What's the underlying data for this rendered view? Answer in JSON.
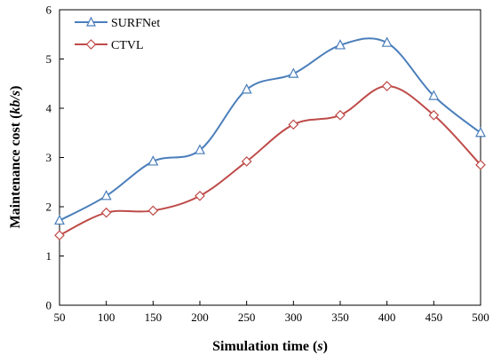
{
  "chart_data": {
    "type": "line",
    "title": "",
    "xlabel": "Simulation time",
    "xlabel_unit": "s",
    "ylabel": "Maintenance cost",
    "ylabel_unit": "kb/s",
    "x": [
      50,
      100,
      150,
      200,
      250,
      300,
      350,
      400,
      450,
      500
    ],
    "xlim": [
      50,
      500
    ],
    "ylim": [
      0,
      6
    ],
    "xticks": [
      "50",
      "100",
      "150",
      "200",
      "250",
      "300",
      "350",
      "400",
      "450",
      "500"
    ],
    "yticks": [
      "0",
      "1",
      "2",
      "3",
      "4",
      "5",
      "6"
    ],
    "grid": false,
    "legend_position": "top-left",
    "series": [
      {
        "name": "SURFNet",
        "color": "#4a7ebb",
        "marker": "triangle",
        "smooth": true,
        "values": [
          1.72,
          2.22,
          2.92,
          3.15,
          4.38,
          4.7,
          5.28,
          5.33,
          4.25,
          3.5
        ]
      },
      {
        "name": "CTVL",
        "color": "#be4b48",
        "marker": "diamond",
        "smooth": true,
        "values": [
          1.42,
          1.88,
          1.92,
          2.22,
          2.92,
          3.67,
          3.86,
          4.45,
          3.86,
          2.85
        ]
      }
    ]
  }
}
